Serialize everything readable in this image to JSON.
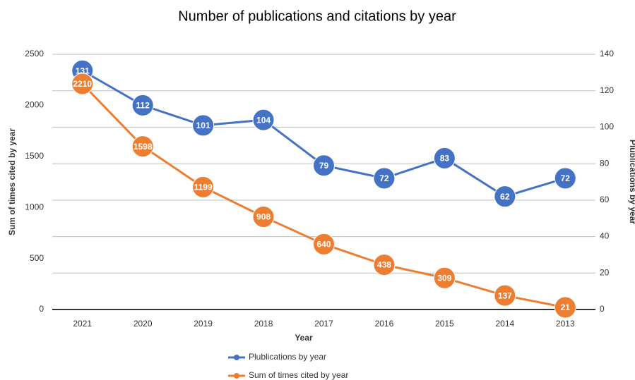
{
  "chart_data": {
    "type": "line",
    "title": "Number of publications and citations by year",
    "x_label": "Year",
    "y_label": "Sum of times cited by year",
    "y2_label": "Plublications by year",
    "categories": [
      "2021",
      "2020",
      "2019",
      "2018",
      "2017",
      "2016",
      "2015",
      "2014",
      "2013"
    ],
    "series": [
      {
        "name": "Plublications by year",
        "color": "#4472c4",
        "axis": "y2",
        "values": [
          131,
          112,
          101,
          104,
          79,
          72,
          83,
          62,
          72
        ]
      },
      {
        "name": "Sum of times cited by year",
        "color": "#ed7d31",
        "axis": "y",
        "values": [
          2210,
          1598,
          1199,
          908,
          640,
          438,
          309,
          137,
          21
        ]
      }
    ],
    "ylim": [
      0,
      2500
    ],
    "yticks": [
      0,
      500,
      1000,
      1500,
      2000,
      2500
    ],
    "y2lim": [
      0,
      140
    ],
    "y2ticks": [
      0,
      20,
      40,
      60,
      80,
      100,
      120,
      140
    ],
    "grid": true,
    "legend": "bottom"
  }
}
